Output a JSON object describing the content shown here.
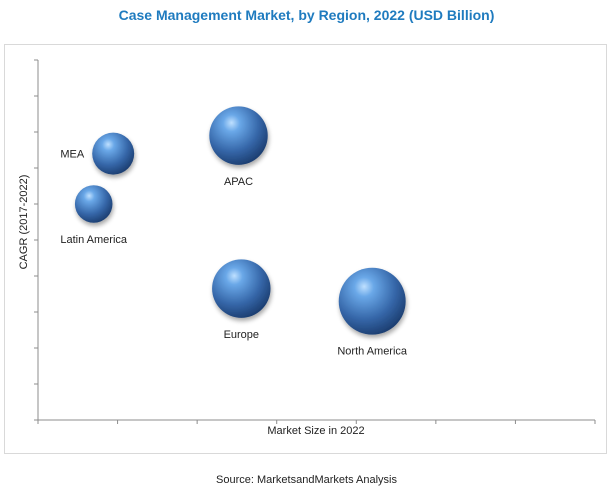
{
  "chart_data": {
    "type": "bubble",
    "title": "Case Management Market, by Region, 2022 (USD Billion)",
    "xlabel": "Market Size in 2022",
    "ylabel": "CAGR (2017-2022)",
    "source": "Source: MarketsandMarkets Analysis",
    "xlim": [
      0,
      10
    ],
    "ylim": [
      0,
      10
    ],
    "grid": false,
    "color": "#3a73b8",
    "points": [
      {
        "label": "MEA",
        "x": 1.35,
        "y": 7.4,
        "size": 1.0
      },
      {
        "label": "Latin America",
        "x": 1.0,
        "y": 6.0,
        "size": 0.8
      },
      {
        "label": "APAC",
        "x": 3.6,
        "y": 7.9,
        "size": 1.6
      },
      {
        "label": "Europe",
        "x": 3.65,
        "y": 3.65,
        "size": 1.6
      },
      {
        "label": "North America",
        "x": 6.0,
        "y": 3.3,
        "size": 2.1
      }
    ]
  }
}
